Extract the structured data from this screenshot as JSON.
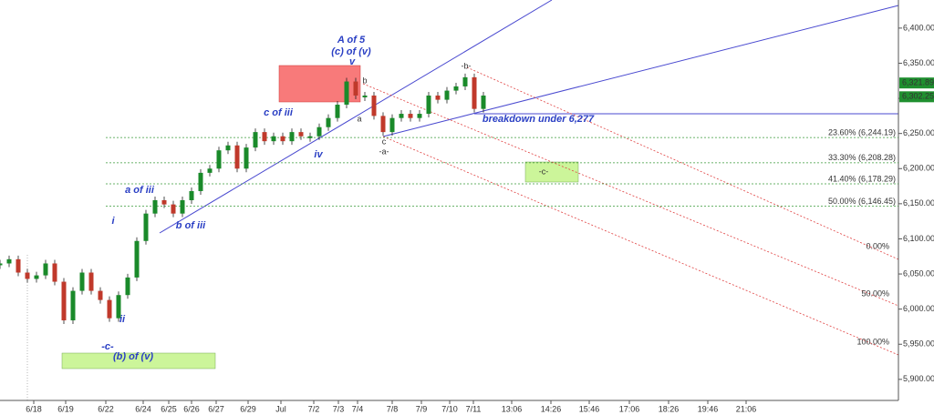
{
  "chart_data": {
    "type": "candles",
    "x": [
      0,
      1,
      2,
      3,
      4,
      5,
      6,
      7,
      8,
      9,
      10,
      11,
      12,
      13,
      14,
      15,
      16,
      17,
      18,
      19,
      20,
      21,
      22,
      23,
      24,
      25,
      26,
      27,
      28,
      29,
      30,
      31,
      32,
      33,
      34,
      35,
      36,
      37,
      38,
      39,
      40,
      41,
      42,
      43,
      44,
      45,
      46,
      47,
      48,
      49,
      50,
      51,
      52,
      53
    ],
    "values": [
      6065,
      6071,
      6052,
      6043,
      6048,
      6065,
      6039,
      5984,
      6026,
      6052,
      6026,
      6013,
      5987,
      6020,
      6045,
      6097,
      6136,
      6155,
      6149,
      6136,
      6155,
      6168,
      6194,
      6200,
      6226,
      6233,
      6200,
      6230,
      6252,
      6239,
      6246,
      6239,
      6252,
      6246,
      6246,
      6259,
      6272,
      6291,
      6324,
      6304,
      6304,
      6275,
      6252,
      6272,
      6278,
      6272,
      6278,
      6304,
      6298,
      6311,
      6317,
      6330,
      6285,
      6304
    ],
    "up_color": "#1a8a2a",
    "down_color": "#c0392b",
    "xlim": [
      0,
      98.5
    ],
    "xticks": [
      {
        "value": 3.7,
        "label": "6/18"
      },
      {
        "value": 7.2,
        "label": "6/19"
      },
      {
        "value": 11.6,
        "label": "6/22"
      },
      {
        "value": 15.7,
        "label": "6/24"
      },
      {
        "value": 18.5,
        "label": "6/25"
      },
      {
        "value": 21,
        "label": "6/26"
      },
      {
        "value": 23.7,
        "label": "6/27"
      },
      {
        "value": 27.2,
        "label": "6/29"
      },
      {
        "value": 30.8,
        "label": "Jul"
      },
      {
        "value": 34.4,
        "label": "7/2"
      },
      {
        "value": 37.1,
        "label": "7/3"
      },
      {
        "value": 39.2,
        "label": "7/4"
      },
      {
        "value": 43,
        "label": "7/8"
      },
      {
        "value": 46.2,
        "label": "7/9"
      },
      {
        "value": 49.3,
        "label": "7/10"
      },
      {
        "value": 51.9,
        "label": "7/11"
      },
      {
        "value": 56.1,
        "label": "13:06"
      },
      {
        "value": 60.4,
        "label": "14:26"
      },
      {
        "value": 64.6,
        "label": "15:46"
      },
      {
        "value": 69,
        "label": "17:06"
      },
      {
        "value": 73.3,
        "label": "18:26"
      },
      {
        "value": 77.6,
        "label": "19:46"
      },
      {
        "value": 81.8,
        "label": "21:06"
      }
    ],
    "ylim": [
      5870,
      6440
    ],
    "yticks": [
      {
        "value": 5900,
        "label": "5,900.00"
      },
      {
        "value": 5950,
        "label": "5,950.00"
      },
      {
        "value": 6000,
        "label": "6,000.00"
      },
      {
        "value": 6050,
        "label": "6,050.00"
      },
      {
        "value": 6100,
        "label": "6,100.00"
      },
      {
        "value": 6150,
        "label": "6,150.00"
      },
      {
        "value": 6200,
        "label": "6,200.00"
      },
      {
        "value": 6250,
        "label": "6,250.00"
      },
      {
        "value": 6300,
        "label": "6,300.00"
      },
      {
        "value": 6350,
        "label": "6,350.00"
      },
      {
        "value": 6400,
        "label": "6,400.00"
      }
    ],
    "price_tags": [
      {
        "value": 6321.89,
        "label": "6,321.89"
      },
      {
        "value": 6302.25,
        "label": "6,302.25"
      }
    ],
    "fib_levels": [
      {
        "value": 6244.19,
        "label": "23.60% (6,244.19)"
      },
      {
        "value": 6208.28,
        "label": "33.30% (6,208.28)"
      },
      {
        "value": 6178.29,
        "label": "41.40% (6,178.29)"
      },
      {
        "value": 6146.45,
        "label": "50.00% (6,146.45)"
      }
    ],
    "channel_labels": [
      "0.00%",
      "50.00%",
      "100.00%"
    ],
    "annotations": [
      "A of 5",
      "(c) of (v)",
      "v",
      "c of iii",
      "a of iii",
      "b of iii",
      "i",
      "ii",
      "iv",
      "-c-",
      "(b) of (v)",
      "a",
      "b",
      "c",
      "-a-",
      "-b-",
      "-c-",
      "breakdown under 6,277"
    ]
  }
}
